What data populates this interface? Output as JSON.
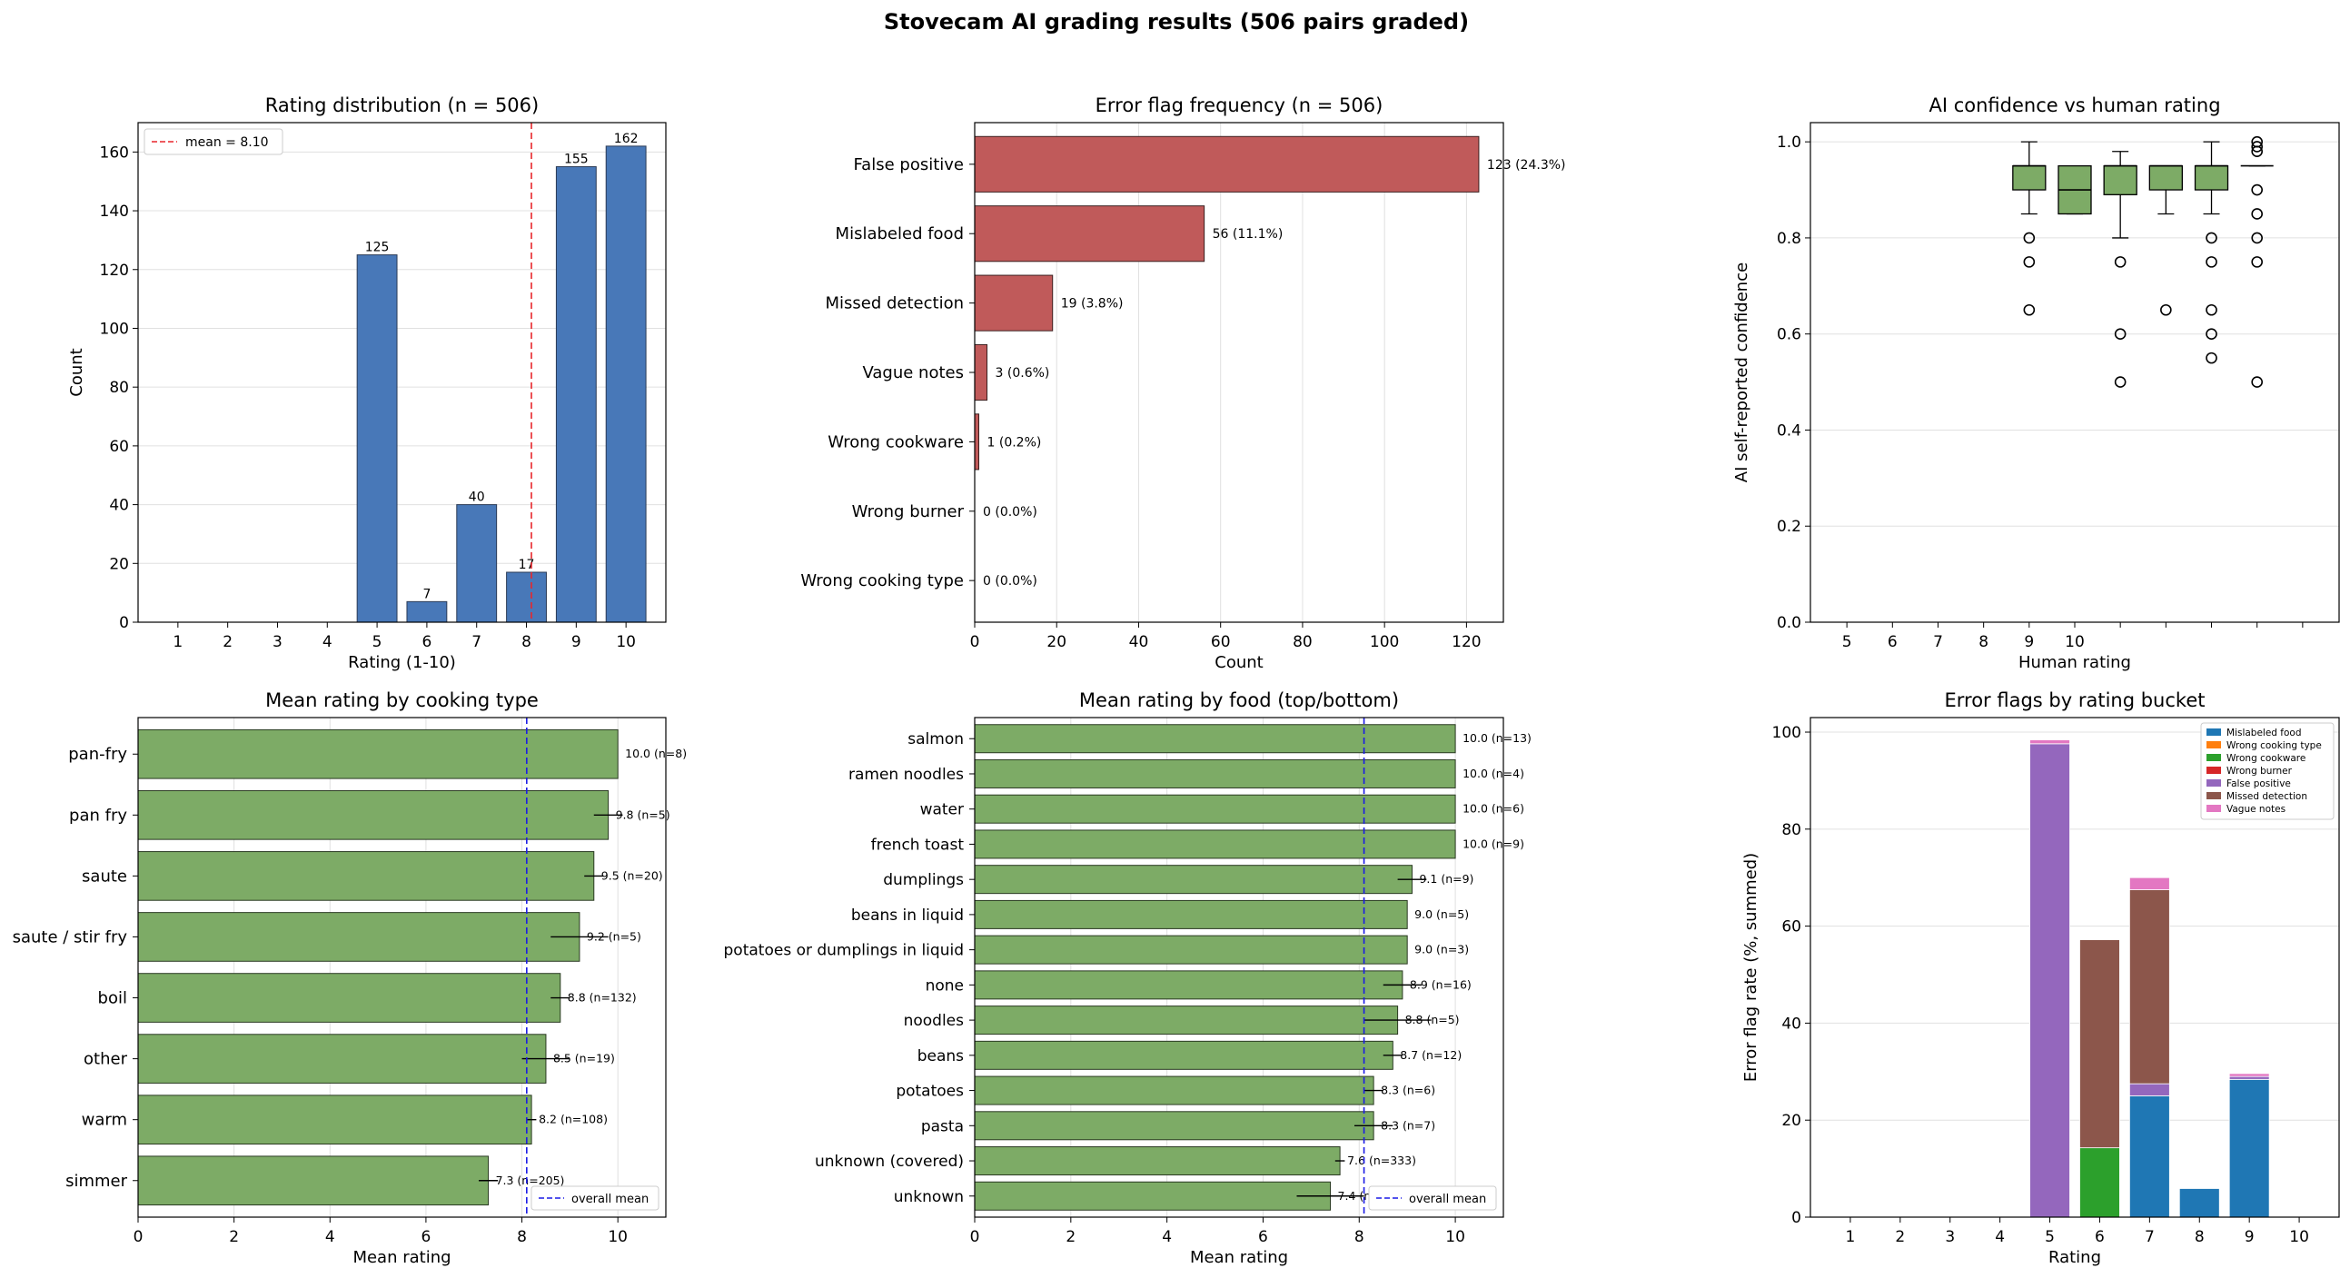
{
  "suptitle": "Stovecam AI grading results  (506 pairs graded)",
  "colors": {
    "blue": "#4878b8",
    "red": "#c05a5a",
    "green": "#7dab66",
    "mean_red": "#e8262b",
    "mean_blue": "#1a1ae6"
  },
  "chart_data": [
    {
      "id": "rating_distribution",
      "type": "bar",
      "title": "Rating distribution  (n = 506)",
      "xlabel": "Rating (1-10)",
      "ylabel": "Count",
      "categories": [
        "1",
        "2",
        "3",
        "4",
        "5",
        "6",
        "7",
        "8",
        "9",
        "10"
      ],
      "values": [
        0,
        0,
        0,
        0,
        125,
        7,
        40,
        17,
        155,
        162
      ],
      "bar_labels": [
        "",
        "",
        "",
        "",
        "125",
        "7",
        "40",
        "17",
        "155",
        "162"
      ],
      "mean": 8.1,
      "legend": "mean = 8.10",
      "legend_loc": "upper left",
      "ylim": [
        0,
        170
      ],
      "yticks": [
        "0",
        "20",
        "40",
        "60",
        "80",
        "100",
        "120",
        "140",
        "160"
      ],
      "grid": "y"
    },
    {
      "id": "error_flag_frequency",
      "type": "bar",
      "orientation": "horizontal",
      "title": "Error flag frequency  (n = 506)",
      "xlabel": "Count",
      "categories": [
        "False positive",
        "Mislabeled food",
        "Missed detection",
        "Vague notes",
        "Wrong cookware",
        "Wrong burner",
        "Wrong cooking type"
      ],
      "values": [
        123,
        56,
        19,
        3,
        1,
        0,
        0
      ],
      "bar_labels": [
        "123  (24.3%)",
        "56  (11.1%)",
        "19  (3.8%)",
        "3  (0.6%)",
        "1  (0.2%)",
        "0  (0.0%)",
        "0  (0.0%)"
      ],
      "xlim": [
        0,
        129
      ],
      "xticks": [
        "0",
        "20",
        "40",
        "60",
        "80",
        "100",
        "120"
      ],
      "grid": "x"
    },
    {
      "id": "confidence_vs_rating",
      "type": "box",
      "title": "AI confidence vs human rating",
      "xlabel": "Human rating",
      "ylabel": "AI self-reported confidence",
      "xtick_labels": [
        "5",
        "6",
        "7",
        "8",
        "9",
        "10",
        "",
        "",
        "",
        "",
        ""
      ],
      "boxes": [
        {
          "q1": 0.9,
          "median": 0.95,
          "q3": 0.95,
          "whislo": 0.85,
          "whishi": 1.0,
          "fliers": [
            0.8,
            0.75,
            0.65
          ]
        },
        {
          "q1": 0.85,
          "median": 0.9,
          "q3": 0.95,
          "whislo": 0.85,
          "whishi": 0.95,
          "fliers": []
        },
        {
          "q1": 0.89,
          "median": 0.95,
          "q3": 0.95,
          "whislo": 0.8,
          "whishi": 0.98,
          "fliers": [
            0.75,
            0.6,
            0.5
          ]
        },
        {
          "q1": 0.9,
          "median": 0.95,
          "q3": 0.95,
          "whislo": 0.85,
          "whishi": 0.95,
          "fliers": [
            0.65
          ]
        },
        {
          "q1": 0.9,
          "median": 0.95,
          "q3": 0.95,
          "whislo": 0.85,
          "whishi": 1.0,
          "fliers": [
            0.8,
            0.75,
            0.65,
            0.6,
            0.55
          ]
        },
        {
          "q1": 0.95,
          "median": 0.95,
          "q3": 0.95,
          "whislo": 0.95,
          "whishi": 0.95,
          "fliers": [
            1.0,
            0.99,
            0.98,
            0.9,
            0.85,
            0.8,
            0.75,
            0.5
          ]
        }
      ],
      "ylim": [
        0,
        1.04
      ],
      "yticks": [
        "0.0",
        "0.2",
        "0.4",
        "0.6",
        "0.8",
        "1.0"
      ],
      "grid": "y"
    },
    {
      "id": "mean_by_cooking_type",
      "type": "bar",
      "orientation": "horizontal",
      "title": "Mean rating by cooking type",
      "xlabel": "Mean rating",
      "categories": [
        "pan-fry",
        "pan fry",
        "saute",
        "saute / stir fry",
        "boil",
        "other",
        "warm",
        "simmer"
      ],
      "values": [
        10.0,
        9.8,
        9.5,
        9.2,
        8.8,
        8.5,
        8.2,
        7.3
      ],
      "errors": [
        0,
        0.3,
        0.2,
        0.6,
        0.2,
        0.5,
        0.1,
        0.2
      ],
      "bar_labels": [
        "10.0  (n=8)",
        "9.8  (n=5)",
        "9.5  (n=20)",
        "9.2  (n=5)",
        "8.8  (n=132)",
        "8.5  (n=19)",
        "8.2  (n=108)",
        "7.3  (n=205)"
      ],
      "overall_mean": 8.1,
      "legend": "overall mean",
      "legend_loc": "lower right",
      "xlim": [
        0,
        11
      ],
      "xticks": [
        "0",
        "2",
        "4",
        "6",
        "8",
        "10"
      ],
      "grid": "x"
    },
    {
      "id": "mean_by_food",
      "type": "bar",
      "orientation": "horizontal",
      "title": "Mean rating by food (top/bottom)",
      "xlabel": "Mean rating",
      "categories": [
        "salmon",
        "ramen noodles",
        "water",
        "french toast",
        "dumplings",
        "beans in liquid",
        "potatoes or dumplings in liquid",
        "none",
        "noodles",
        "beans",
        "potatoes",
        "pasta",
        "unknown (covered)",
        "unknown"
      ],
      "values": [
        10.0,
        10.0,
        10.0,
        10.0,
        9.1,
        9.0,
        9.0,
        8.9,
        8.8,
        8.7,
        8.3,
        8.3,
        7.6,
        7.4
      ],
      "errors": [
        0,
        0,
        0,
        0,
        0.3,
        0,
        0,
        0.4,
        0.7,
        0.2,
        0.2,
        0.4,
        0.1,
        0.7
      ],
      "bar_labels": [
        "10.0  (n=13)",
        "10.0  (n=4)",
        "10.0  (n=6)",
        "10.0  (n=9)",
        "9.1  (n=9)",
        "9.0  (n=5)",
        "9.0  (n=3)",
        "8.9  (n=16)",
        "8.8  (n=5)",
        "8.7  (n=12)",
        "8.3  (n=6)",
        "8.3  (n=7)",
        "7.6  (n=333)",
        "7.4  (n=8)"
      ],
      "overall_mean": 8.1,
      "legend": "overall mean",
      "legend_loc": "lower right",
      "xlim": [
        0,
        11
      ],
      "xticks": [
        "0",
        "2",
        "4",
        "6",
        "8",
        "10"
      ],
      "grid": "x"
    },
    {
      "id": "flags_by_rating_bucket",
      "type": "bar",
      "stacked": true,
      "title": "Error flags by rating bucket",
      "xlabel": "Rating",
      "ylabel": "Error flag rate (%, summed)",
      "categories": [
        "1",
        "2",
        "3",
        "4",
        "5",
        "6",
        "7",
        "8",
        "9",
        "10"
      ],
      "series": [
        {
          "name": "Mislabeled food",
          "color": "#1f77b4",
          "values": [
            0,
            0,
            0,
            0,
            0,
            0,
            25.0,
            5.9,
            28.4,
            0
          ]
        },
        {
          "name": "Wrong cooking type",
          "color": "#ff7f0e",
          "values": [
            0,
            0,
            0,
            0,
            0,
            0,
            0,
            0,
            0,
            0
          ]
        },
        {
          "name": "Wrong cookware",
          "color": "#2ca02c",
          "values": [
            0,
            0,
            0,
            0,
            0,
            14.3,
            0,
            0,
            0,
            0
          ]
        },
        {
          "name": "Wrong burner",
          "color": "#d62728",
          "values": [
            0,
            0,
            0,
            0,
            0,
            0,
            0,
            0,
            0,
            0
          ]
        },
        {
          "name": "False positive",
          "color": "#9467bd",
          "values": [
            0,
            0,
            0,
            0,
            97.6,
            0,
            2.5,
            0,
            0.6,
            0
          ]
        },
        {
          "name": "Missed detection",
          "color": "#8c564b",
          "values": [
            0,
            0,
            0,
            0,
            0,
            42.9,
            40.0,
            0,
            0,
            0
          ]
        },
        {
          "name": "Vague notes",
          "color": "#e377c2",
          "values": [
            0,
            0,
            0,
            0,
            0.8,
            0,
            2.5,
            0,
            0.6,
            0
          ]
        }
      ],
      "legend_loc": "upper right",
      "ylim": [
        0,
        103
      ],
      "yticks": [
        "0",
        "20",
        "40",
        "60",
        "80",
        "100"
      ],
      "grid": "y"
    }
  ]
}
